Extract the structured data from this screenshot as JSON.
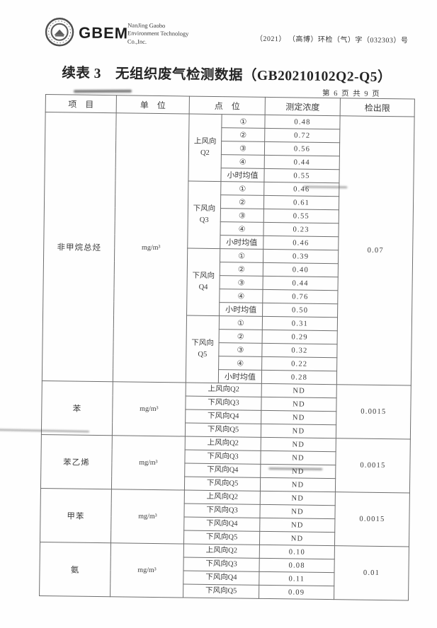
{
  "colors": {
    "ink": "#3b3b3b",
    "table_border": "#6e6e6e",
    "logo_ink": "#555555"
  },
  "header": {
    "logo_icon": "gbem-round-stamp-icon",
    "logo_abbr": "GBEM",
    "company_lines": [
      "NanJing Gaobo",
      "Environment Technology",
      "Co.,Inc."
    ],
    "doc_number": "（2021） （高博）环检（气）字（032303）号"
  },
  "title": "续表 3　无组织废气检测数据（GB20210102Q2-Q5）",
  "page_info": "第 6 页 共 9 页",
  "table": {
    "columns": [
      "项　目",
      "单　位",
      "点　位",
      "测定浓度",
      "检出限"
    ],
    "sections": [
      {
        "item": "非甲烷总烃",
        "unit": "mg/m³",
        "detection_limit": "0.07",
        "groups": [
          {
            "location": "上风向\nQ2",
            "rows": [
              [
                "①",
                "0.48"
              ],
              [
                "②",
                "0.72"
              ],
              [
                "③",
                "0.56"
              ],
              [
                "④",
                "0.44"
              ],
              [
                "小时均值",
                "0.55"
              ]
            ]
          },
          {
            "location": "下风向\nQ3",
            "rows": [
              [
                "①",
                "0.46"
              ],
              [
                "②",
                "0.61"
              ],
              [
                "③",
                "0.55"
              ],
              [
                "④",
                "0.23"
              ],
              [
                "小时均值",
                "0.46"
              ]
            ]
          },
          {
            "location": "下风向\nQ4",
            "rows": [
              [
                "①",
                "0.39"
              ],
              [
                "②",
                "0.40"
              ],
              [
                "③",
                "0.44"
              ],
              [
                "④",
                "0.76"
              ],
              [
                "小时均值",
                "0.50"
              ]
            ]
          },
          {
            "location": "下风向\nQ5",
            "rows": [
              [
                "①",
                "0.31"
              ],
              [
                "②",
                "0.29"
              ],
              [
                "③",
                "0.32"
              ],
              [
                "④",
                "0.22"
              ],
              [
                "小时均值",
                "0.28"
              ]
            ]
          }
        ]
      },
      {
        "item": "苯",
        "unit": "mg/m³",
        "detection_limit": "0.0015",
        "rows": [
          [
            "上风向Q2",
            "ND"
          ],
          [
            "下风向Q3",
            "ND"
          ],
          [
            "下风向Q4",
            "ND"
          ],
          [
            "下风向Q5",
            "ND"
          ]
        ]
      },
      {
        "item": "苯乙烯",
        "unit": "mg/m³",
        "detection_limit": "0.0015",
        "rows": [
          [
            "上风向Q2",
            "ND"
          ],
          [
            "下风向Q3",
            "ND"
          ],
          [
            "下风向Q4",
            "ND"
          ],
          [
            "下风向Q5",
            "ND"
          ]
        ]
      },
      {
        "item": "甲苯",
        "unit": "mg/m³",
        "detection_limit": "0.0015",
        "rows": [
          [
            "上风向Q2",
            "ND"
          ],
          [
            "下风向Q3",
            "ND"
          ],
          [
            "下风向Q4",
            "ND"
          ],
          [
            "下风向Q5",
            "ND"
          ]
        ]
      },
      {
        "item": "氨",
        "unit": "mg/m³",
        "detection_limit": "0.01",
        "rows": [
          [
            "上风向Q2",
            "0.10"
          ],
          [
            "下风向Q3",
            "0.08"
          ],
          [
            "下风向Q4",
            "0.11"
          ],
          [
            "下风向Q5",
            "0.09"
          ]
        ]
      }
    ]
  }
}
